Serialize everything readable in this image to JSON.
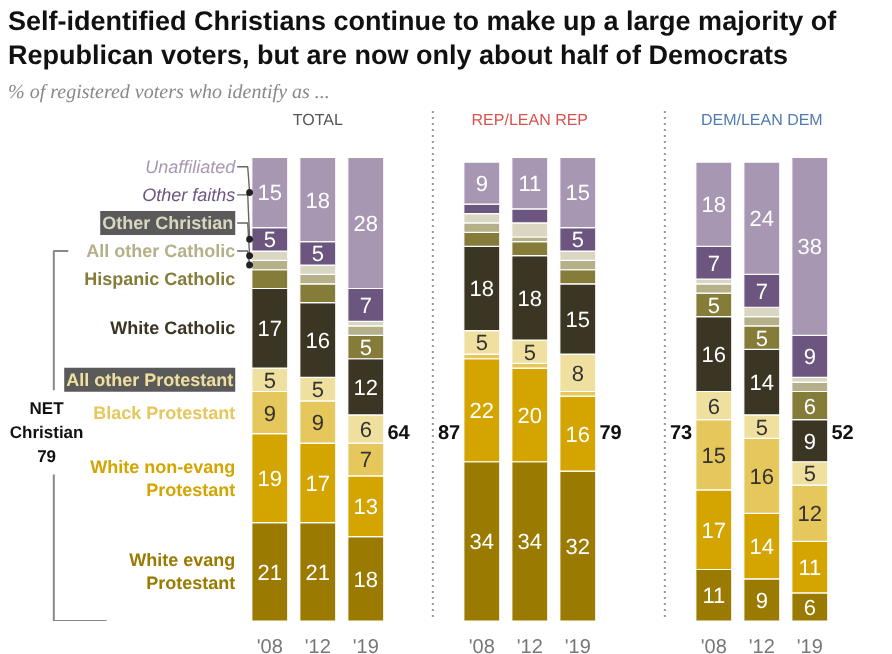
{
  "chart_data": [
    {
      "type": "bar",
      "stacked": true,
      "title": "Self-identified Christians continue to make up a large majority of Republican voters, but are now only about half of Democrats",
      "subtitle": "% of registered voters who identify as ...",
      "categories": [
        "'08",
        "'12",
        "'19"
      ],
      "annotations": [
        "TOTAL",
        "NET Christian 79",
        "64"
      ],
      "series": [
        {
          "name": "White evang Protestant",
          "color": "#9a7a00",
          "values": [
            21,
            21,
            18
          ],
          "value_labels": [
            "21",
            "21",
            "18"
          ]
        },
        {
          "name": "White non-evang Protestant",
          "color": "#d4a500",
          "values": [
            19,
            17,
            13
          ],
          "value_labels": [
            "19",
            "17",
            "13"
          ]
        },
        {
          "name": "Black Protestant",
          "color": "#e6c75c",
          "values": [
            9,
            9,
            7
          ],
          "value_labels": [
            "9",
            "9",
            "7"
          ]
        },
        {
          "name": "All other Protestant",
          "color": "#f0e0a0",
          "values": [
            5,
            5,
            6
          ],
          "value_labels": [
            "5",
            "5",
            "6"
          ]
        },
        {
          "name": "White Catholic",
          "color": "#3b3524",
          "values": [
            17,
            16,
            12
          ],
          "value_labels": [
            "17",
            "16",
            "12"
          ]
        },
        {
          "name": "Hispanic Catholic",
          "color": "#857c3a",
          "values": [
            4,
            4,
            5
          ],
          "value_labels": [
            null,
            null,
            "5"
          ]
        },
        {
          "name": "All other Catholic",
          "color": "#b5b08a",
          "values": [
            2,
            2,
            2
          ],
          "value_labels": [
            null,
            null,
            null
          ]
        },
        {
          "name": "Other Christian",
          "color": "#d9d6c1",
          "values": [
            2,
            2,
            1
          ],
          "value_labels": [
            null,
            null,
            null
          ]
        },
        {
          "name": "Other faiths",
          "color": "#6c557e",
          "values": [
            5,
            5,
            7
          ],
          "value_labels": [
            "5",
            "5",
            "7"
          ]
        },
        {
          "name": "Unaffiliated",
          "color": "#a797b3",
          "values": [
            15,
            18,
            28
          ],
          "value_labels": [
            "15",
            "18",
            "28"
          ]
        }
      ]
    },
    {
      "type": "bar",
      "stacked": true,
      "categories": [
        "'08",
        "'12",
        "'19"
      ],
      "annotations": [
        "REP/LEAN REP",
        "87",
        "79"
      ],
      "series": [
        {
          "color": "#9a7a00",
          "values": [
            34,
            34,
            32
          ],
          "value_labels": [
            "34",
            "34",
            "32"
          ]
        },
        {
          "color": "#d4a500",
          "values": [
            22,
            20,
            16
          ],
          "value_labels": [
            "22",
            "20",
            "16"
          ]
        },
        {
          "color": "#e6c75c",
          "values": [
            1,
            1,
            1
          ],
          "value_labels": [
            null,
            null,
            null
          ]
        },
        {
          "color": "#f0e0a0",
          "values": [
            5,
            5,
            8
          ],
          "value_labels": [
            "5",
            "5",
            "8"
          ]
        },
        {
          "color": "#3b3524",
          "values": [
            18,
            18,
            15
          ],
          "value_labels": [
            "18",
            "18",
            "15"
          ]
        },
        {
          "color": "#857c3a",
          "values": [
            3,
            3,
            3
          ],
          "value_labels": [
            null,
            null,
            null
          ]
        },
        {
          "color": "#b5b08a",
          "values": [
            2,
            1,
            2
          ],
          "value_labels": [
            null,
            null,
            null
          ]
        },
        {
          "color": "#d9d6c1",
          "values": [
            2,
            3,
            2
          ],
          "value_labels": [
            null,
            null,
            null
          ]
        },
        {
          "color": "#6c557e",
          "values": [
            2,
            3,
            5
          ],
          "value_labels": [
            null,
            null,
            "5"
          ]
        },
        {
          "color": "#a797b3",
          "values": [
            9,
            11,
            15
          ],
          "value_labels": [
            "9",
            "11",
            "15"
          ]
        }
      ]
    },
    {
      "type": "bar",
      "stacked": true,
      "categories": [
        "'08",
        "'12",
        "'19"
      ],
      "annotations": [
        "DEM/LEAN DEM",
        "73",
        "52"
      ],
      "series": [
        {
          "color": "#9a7a00",
          "values": [
            11,
            9,
            6
          ],
          "value_labels": [
            "11",
            "9",
            "6"
          ]
        },
        {
          "color": "#d4a500",
          "values": [
            17,
            14,
            11
          ],
          "value_labels": [
            "17",
            "14",
            "11"
          ]
        },
        {
          "color": "#e6c75c",
          "values": [
            15,
            16,
            12
          ],
          "value_labels": [
            "15",
            "16",
            "12"
          ]
        },
        {
          "color": "#f0e0a0",
          "values": [
            6,
            5,
            5
          ],
          "value_labels": [
            "6",
            "5",
            "5"
          ]
        },
        {
          "color": "#3b3524",
          "values": [
            16,
            14,
            9
          ],
          "value_labels": [
            "16",
            "14",
            "9"
          ]
        },
        {
          "color": "#857c3a",
          "values": [
            5,
            5,
            6
          ],
          "value_labels": [
            "5",
            "5",
            "6"
          ]
        },
        {
          "color": "#b5b08a",
          "values": [
            2,
            2,
            2
          ],
          "value_labels": [
            null,
            null,
            null
          ]
        },
        {
          "color": "#d9d6c1",
          "values": [
            1,
            2,
            1
          ],
          "value_labels": [
            null,
            null,
            null
          ]
        },
        {
          "color": "#6c557e",
          "values": [
            7,
            7,
            9
          ],
          "value_labels": [
            "7",
            "7",
            "9"
          ]
        },
        {
          "color": "#a797b3",
          "values": [
            18,
            24,
            38
          ],
          "value_labels": [
            "18",
            "24",
            "38"
          ]
        }
      ]
    }
  ]
}
